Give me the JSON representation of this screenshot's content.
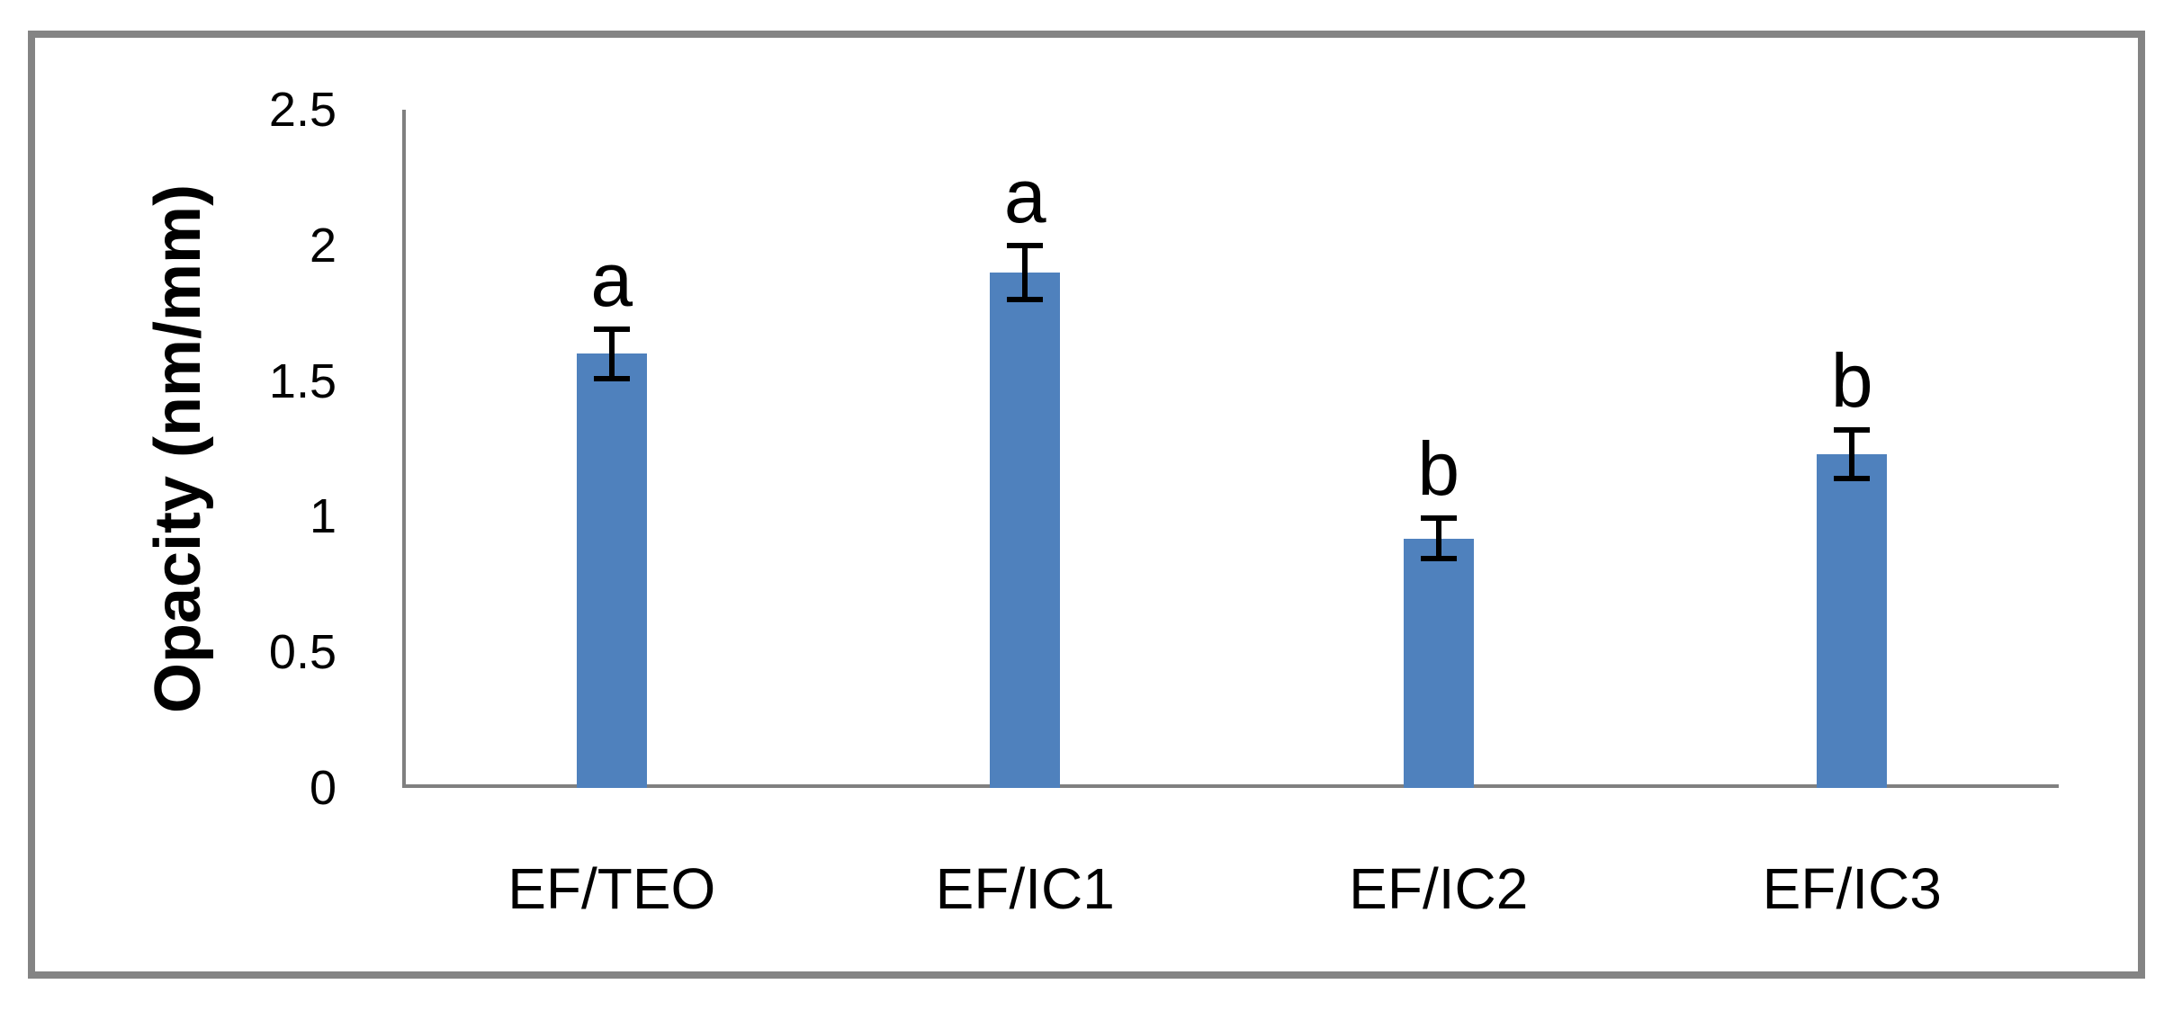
{
  "chart_data": {
    "type": "bar",
    "title": "",
    "xlabel": "",
    "ylabel": "Opacity (nm/mm)",
    "categories": [
      "EF/TEO",
      "EF/IC1",
      "EF/IC2",
      "EF/IC3"
    ],
    "series": [
      {
        "name": "Opacity",
        "values": [
          1.6,
          1.9,
          0.92,
          1.23
        ],
        "errors": [
          0.09,
          0.1,
          0.075,
          0.09
        ],
        "significance_letters": [
          "a",
          "a",
          "b",
          "b"
        ]
      }
    ],
    "ylim": [
      0,
      2.5
    ],
    "yticks": [
      0,
      0.5,
      1,
      1.5,
      2,
      2.5
    ],
    "grid": false,
    "legend": false,
    "bar_color": "#4f81bd",
    "error_bar_color": "#000000",
    "axis_color": "#808080",
    "frame_color": "#848484",
    "text_color": "#000000"
  }
}
